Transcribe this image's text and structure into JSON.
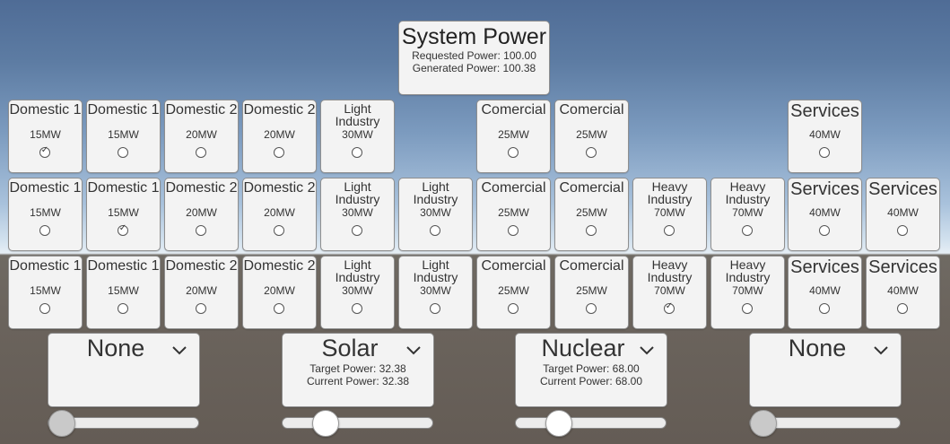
{
  "system": {
    "title": "System Power",
    "requested": "Requested Power: 100.00",
    "generated": "Generated Power: 100.38"
  },
  "rows": [
    [
      {
        "name": "Domestic 1",
        "mw": "15MW",
        "checked": true,
        "style": "n1"
      },
      {
        "name": "Domestic 1",
        "mw": "15MW",
        "checked": false,
        "style": "n1"
      },
      {
        "name": "Domestic 2",
        "mw": "20MW",
        "checked": false,
        "style": "n1"
      },
      {
        "name": "Domestic 2",
        "mw": "20MW",
        "checked": false,
        "style": "n1"
      },
      {
        "name": "Light\nIndustry",
        "mw": "30MW",
        "checked": false,
        "style": "n2"
      },
      null,
      {
        "name": "Comercial",
        "mw": "25MW",
        "checked": false,
        "style": "n1"
      },
      {
        "name": "Comercial",
        "mw": "25MW",
        "checked": false,
        "style": "n1"
      },
      null,
      null,
      {
        "name": "Services",
        "mw": "40MW",
        "checked": false,
        "style": "n3"
      },
      null
    ],
    [
      {
        "name": "Domestic 1",
        "mw": "15MW",
        "checked": false,
        "style": "n1"
      },
      {
        "name": "Domestic 1",
        "mw": "15MW",
        "checked": true,
        "style": "n1"
      },
      {
        "name": "Domestic 2",
        "mw": "20MW",
        "checked": false,
        "style": "n1"
      },
      {
        "name": "Domestic 2",
        "mw": "20MW",
        "checked": false,
        "style": "n1"
      },
      {
        "name": "Light\nIndustry",
        "mw": "30MW",
        "checked": false,
        "style": "n2"
      },
      {
        "name": "Light\nIndustry",
        "mw": "30MW",
        "checked": false,
        "style": "n2"
      },
      {
        "name": "Comercial",
        "mw": "25MW",
        "checked": false,
        "style": "n1"
      },
      {
        "name": "Comercial",
        "mw": "25MW",
        "checked": false,
        "style": "n1"
      },
      {
        "name": "Heavy\nIndustry",
        "mw": "70MW",
        "checked": false,
        "style": "n2"
      },
      {
        "name": "Heavy\nIndustry",
        "mw": "70MW",
        "checked": false,
        "style": "n2"
      },
      {
        "name": "Services",
        "mw": "40MW",
        "checked": false,
        "style": "n3"
      },
      {
        "name": "Services",
        "mw": "40MW",
        "checked": false,
        "style": "n3"
      }
    ],
    [
      {
        "name": "Domestic 1",
        "mw": "15MW",
        "checked": false,
        "style": "n1"
      },
      {
        "name": "Domestic 1",
        "mw": "15MW",
        "checked": false,
        "style": "n1"
      },
      {
        "name": "Domestic 2",
        "mw": "20MW",
        "checked": false,
        "style": "n1"
      },
      {
        "name": "Domestic 2",
        "mw": "20MW",
        "checked": false,
        "style": "n1"
      },
      {
        "name": "Light\nIndustry",
        "mw": "30MW",
        "checked": false,
        "style": "n2"
      },
      {
        "name": "Light\nIndustry",
        "mw": "30MW",
        "checked": false,
        "style": "n2"
      },
      {
        "name": "Comercial",
        "mw": "25MW",
        "checked": false,
        "style": "n1"
      },
      {
        "name": "Comercial",
        "mw": "25MW",
        "checked": false,
        "style": "n1"
      },
      {
        "name": "Heavy\nIndustry",
        "mw": "70MW",
        "checked": true,
        "style": "n2"
      },
      {
        "name": "Heavy\nIndustry",
        "mw": "70MW",
        "checked": false,
        "style": "n2"
      },
      {
        "name": "Services",
        "mw": "40MW",
        "checked": false,
        "style": "n3"
      },
      {
        "name": "Services",
        "mw": "40MW",
        "checked": false,
        "style": "n3"
      }
    ]
  ],
  "generators": [
    {
      "type": "None",
      "target": "",
      "current": "",
      "slider_value": 0.0,
      "slider_active": false
    },
    {
      "type": "Solar",
      "target": "Target Power: 32.38",
      "current": "Current Power: 32.38",
      "slider_value": 0.24,
      "slider_active": true
    },
    {
      "type": "Nuclear",
      "target": "Target Power: 68.00",
      "current": "Current Power: 68.00",
      "slider_value": 0.24,
      "slider_active": true
    },
    {
      "type": "None",
      "target": "",
      "current": "",
      "slider_value": 0.0,
      "slider_active": false
    }
  ],
  "icons": {
    "dropdown": "chevron-down-icon",
    "check": "check-icon"
  }
}
